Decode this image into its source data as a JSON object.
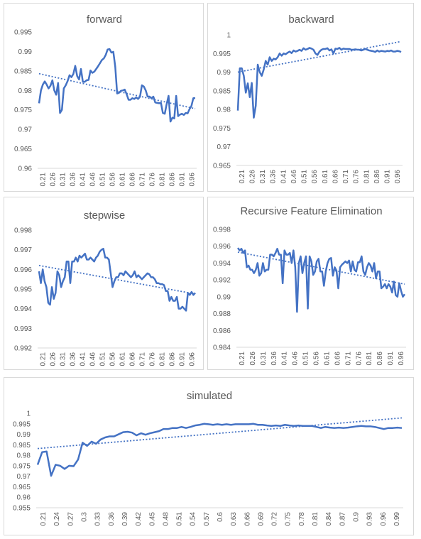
{
  "chart_data": [
    {
      "id": "forward",
      "type": "line",
      "title": "forward",
      "xlabel": "",
      "ylabel": "",
      "x_ticks": [
        "0.21",
        "0.26",
        "0.31",
        "0.36",
        "0.41",
        "0.46",
        "0.51",
        "0.56",
        "0.61",
        "0.66",
        "0.71",
        "0.76",
        "0.81",
        "0.86",
        "0.91",
        "0.96"
      ],
      "y_ticks": [
        "0.96",
        "0.965",
        "0.97",
        "0.975",
        "0.98",
        "0.985",
        "0.99",
        "0.995"
      ],
      "xlim": [
        0.21,
        1.0
      ],
      "ylim": [
        0.96,
        0.995
      ],
      "series_color": "#4472c4",
      "trendline": {
        "style": "dotted linear",
        "start": 0.9843,
        "end": 0.9753
      },
      "values": [
        0.9767,
        0.98,
        0.9815,
        0.9823,
        0.9815,
        0.9805,
        0.9812,
        0.9826,
        0.98,
        0.9789,
        0.9819,
        0.9742,
        0.975,
        0.9805,
        0.9813,
        0.9824,
        0.9839,
        0.9834,
        0.9842,
        0.9863,
        0.9837,
        0.9828,
        0.9855,
        0.9822,
        0.9822,
        0.9826,
        0.9827,
        0.9851,
        0.9845,
        0.9848,
        0.9855,
        0.9862,
        0.987,
        0.9878,
        0.9882,
        0.9891,
        0.9905,
        0.9906,
        0.9897,
        0.9899,
        0.9861,
        0.9792,
        0.9794,
        0.9799,
        0.98,
        0.9802,
        0.979,
        0.9776,
        0.9776,
        0.978,
        0.9778,
        0.9782,
        0.9778,
        0.9784,
        0.9813,
        0.981,
        0.98,
        0.9784,
        0.9784,
        0.978,
        0.9784,
        0.9769,
        0.9768,
        0.9767,
        0.9768,
        0.9742,
        0.974,
        0.9765,
        0.9786,
        0.972,
        0.973,
        0.9728,
        0.9786,
        0.9734,
        0.9738,
        0.974,
        0.9737,
        0.9742,
        0.9741,
        0.9752,
        0.976,
        0.978,
        0.978
      ]
    },
    {
      "id": "backward",
      "type": "line",
      "title": "backward",
      "xlabel": "",
      "ylabel": "",
      "x_ticks": [
        "0.21",
        "0.26",
        "0.31",
        "0.36",
        "0.41",
        "0.46",
        "0.51",
        "0.56",
        "0.61",
        "0.66",
        "0.71",
        "0.76",
        "0.81",
        "0.86",
        "0.91",
        "0.96"
      ],
      "y_ticks": [
        "0.965",
        "0.97",
        "0.975",
        "0.98",
        "0.985",
        "0.99",
        "0.995",
        "1"
      ],
      "xlim": [
        0.21,
        1.0
      ],
      "ylim": [
        0.965,
        1.0
      ],
      "series_color": "#4472c4",
      "trendline": {
        "style": "dotted linear",
        "start": 0.99,
        "end": 0.9982
      },
      "values": [
        0.9797,
        0.991,
        0.991,
        0.989,
        0.9845,
        0.987,
        0.9833,
        0.9871,
        0.9778,
        0.981,
        0.992,
        0.99,
        0.989,
        0.9907,
        0.993,
        0.992,
        0.994,
        0.993,
        0.9936,
        0.9934,
        0.994,
        0.995,
        0.9944,
        0.995,
        0.9948,
        0.9952,
        0.9955,
        0.9951,
        0.9958,
        0.9955,
        0.9957,
        0.996,
        0.9957,
        0.9964,
        0.996,
        0.9962,
        0.9965,
        0.9963,
        0.996,
        0.995,
        0.9946,
        0.9955,
        0.996,
        0.9962,
        0.9962,
        0.9964,
        0.9958,
        0.9961,
        0.995,
        0.9963,
        0.9962,
        0.9965,
        0.996,
        0.9963,
        0.9962,
        0.9962,
        0.9962,
        0.996,
        0.996,
        0.9961,
        0.996,
        0.996,
        0.9958,
        0.996,
        0.9962,
        0.996,
        0.9958,
        0.9957,
        0.9956,
        0.9954,
        0.9958,
        0.9955,
        0.9957,
        0.9956,
        0.9955,
        0.9957,
        0.9956,
        0.9958,
        0.9955,
        0.9955,
        0.9957,
        0.9956,
        0.9954
      ]
    },
    {
      "id": "stepwise",
      "type": "line",
      "title": "stepwise",
      "xlabel": "",
      "ylabel": "",
      "x_ticks": [
        "0.21",
        "0.26",
        "0.31",
        "0.36",
        "0.41",
        "0.46",
        "0.51",
        "0.56",
        "0.61",
        "0.66",
        "0.71",
        "0.76",
        "0.81",
        "0.86",
        "0.91",
        "0.96"
      ],
      "y_ticks": [
        "0.992",
        "0.993",
        "0.994",
        "0.995",
        "0.996",
        "0.997",
        "0.998"
      ],
      "xlim": [
        0.21,
        1.0
      ],
      "ylim": [
        0.992,
        0.998
      ],
      "series_color": "#4472c4",
      "trendline": {
        "style": "dotted linear",
        "start": 0.9962,
        "end": 0.99475
      },
      "values": [
        0.9959,
        0.9953,
        0.996,
        0.9954,
        0.9951,
        0.9943,
        0.9942,
        0.9951,
        0.9945,
        0.9948,
        0.9959,
        0.9957,
        0.9951,
        0.9954,
        0.9956,
        0.9964,
        0.9964,
        0.9953,
        0.9964,
        0.9964,
        0.9966,
        0.9964,
        0.9967,
        0.9966,
        0.9967,
        0.9968,
        0.9965,
        0.9965,
        0.9966,
        0.9965,
        0.9964,
        0.9966,
        0.9967,
        0.9969,
        0.997,
        0.99705,
        0.9966,
        0.9966,
        0.9965,
        0.9958,
        0.9951,
        0.9954,
        0.9956,
        0.9956,
        0.9958,
        0.9958,
        0.9957,
        0.9959,
        0.9958,
        0.9957,
        0.9956,
        0.9957,
        0.9959,
        0.9956,
        0.9957,
        0.9956,
        0.9955,
        0.9956,
        0.9957,
        0.9958,
        0.99575,
        0.9956,
        0.9956,
        0.9955,
        0.9953,
        0.9953,
        0.99525,
        0.99525,
        0.9952,
        0.9949,
        0.9949,
        0.9944,
        0.9946,
        0.9944,
        0.9944,
        0.9946,
        0.994,
        0.994,
        0.9941,
        0.994,
        0.9939,
        0.9948,
        0.9947,
        0.99485,
        0.9947,
        0.9948
      ]
    },
    {
      "id": "rfe",
      "type": "line",
      "title": "Recursive Feature Elimination",
      "xlabel": "",
      "ylabel": "",
      "x_ticks": [
        "0.21",
        "0.26",
        "0.31",
        "0.36",
        "0.41",
        "0.46",
        "0.51",
        "0.56",
        "0.61",
        "0.66",
        "0.71",
        "0.76",
        "0.81",
        "0.86",
        "0.91",
        "0.96"
      ],
      "y_ticks": [
        "0.984",
        "0.986",
        "0.988",
        "0.99",
        "0.992",
        "0.994",
        "0.996",
        "0.998"
      ],
      "xlim": [
        0.21,
        1.0
      ],
      "ylim": [
        0.984,
        0.998
      ],
      "series_color": "#4472c4",
      "trendline": {
        "style": "dotted linear",
        "start": 0.9953,
        "end": 0.9915
      },
      "values": [
        0.9958,
        0.9955,
        0.9957,
        0.9952,
        0.9955,
        0.9935,
        0.9937,
        0.9932,
        0.9932,
        0.9928,
        0.9932,
        0.994,
        0.9925,
        0.9928,
        0.994,
        0.993,
        0.9932,
        0.9932,
        0.995,
        0.995,
        0.9948,
        0.9952,
        0.9957,
        0.995,
        0.995,
        0.9916,
        0.9955,
        0.995,
        0.995,
        0.9952,
        0.994,
        0.9955,
        0.9935,
        0.9882,
        0.994,
        0.9948,
        0.9928,
        0.994,
        0.9948,
        0.9886,
        0.9948,
        0.9942,
        0.9926,
        0.993,
        0.9942,
        0.9945,
        0.993,
        0.993,
        0.9913,
        0.993,
        0.994,
        0.9945,
        0.9946,
        0.9925,
        0.9935,
        0.9931,
        0.991,
        0.9935,
        0.9938,
        0.994,
        0.9942,
        0.994,
        0.9943,
        0.993,
        0.9942,
        0.9932,
        0.993,
        0.9941,
        0.9941,
        0.9948,
        0.993,
        0.9926,
        0.9935,
        0.994,
        0.9937,
        0.993,
        0.994,
        0.9922,
        0.993,
        0.993,
        0.991,
        0.9912,
        0.9915,
        0.991,
        0.9915,
        0.9912,
        0.9905,
        0.9918,
        0.9902,
        0.99,
        0.9916,
        0.9907,
        0.99,
        0.9903
      ]
    },
    {
      "id": "simulated",
      "type": "line",
      "title": "simulated",
      "xlabel": "",
      "ylabel": "",
      "x_ticks": [
        "0.21",
        "0.24",
        "0.27",
        "0.3",
        "0.33",
        "0.36",
        "0.39",
        "0.42",
        "0.45",
        "0.48",
        "0.51",
        "0.54",
        "0.57",
        "0.6",
        "0.63",
        "0.66",
        "0.69",
        "0.72",
        "0.75",
        "0.78",
        "0.81",
        "0.84",
        "0.87",
        "0.9",
        "0.93",
        "0.96",
        "0.99"
      ],
      "y_ticks": [
        "0.955",
        "0.96",
        "0.965",
        "0.97",
        "0.975",
        "0.98",
        "0.985",
        "0.99",
        "0.995",
        "1"
      ],
      "xlim": [
        0.21,
        1.0
      ],
      "ylim": [
        0.955,
        1.0
      ],
      "series_color": "#4472c4",
      "trendline": {
        "style": "dotted linear",
        "start": 0.9832,
        "end": 0.9978
      },
      "values": [
        0.9755,
        0.9815,
        0.9818,
        0.9702,
        0.9755,
        0.975,
        0.9735,
        0.975,
        0.9748,
        0.978,
        0.986,
        0.9845,
        0.9865,
        0.9855,
        0.9875,
        0.9885,
        0.989,
        0.989,
        0.99,
        0.991,
        0.9912,
        0.9908,
        0.9895,
        0.9905,
        0.9898,
        0.9905,
        0.991,
        0.9915,
        0.9925,
        0.9925,
        0.993,
        0.993,
        0.9935,
        0.993,
        0.9935,
        0.9942,
        0.9945,
        0.995,
        0.9948,
        0.9945,
        0.9948,
        0.9945,
        0.9948,
        0.9945,
        0.9948,
        0.9948,
        0.9948,
        0.9948,
        0.995,
        0.9945,
        0.9945,
        0.9942,
        0.994,
        0.9942,
        0.994,
        0.9945,
        0.9942,
        0.994,
        0.9942,
        0.994,
        0.994,
        0.994,
        0.9935,
        0.993,
        0.9935,
        0.9932,
        0.993,
        0.9932,
        0.993,
        0.9932,
        0.9935,
        0.9938,
        0.994,
        0.9938,
        0.9938,
        0.9935,
        0.993,
        0.9925,
        0.993,
        0.993,
        0.9932,
        0.993
      ]
    }
  ]
}
